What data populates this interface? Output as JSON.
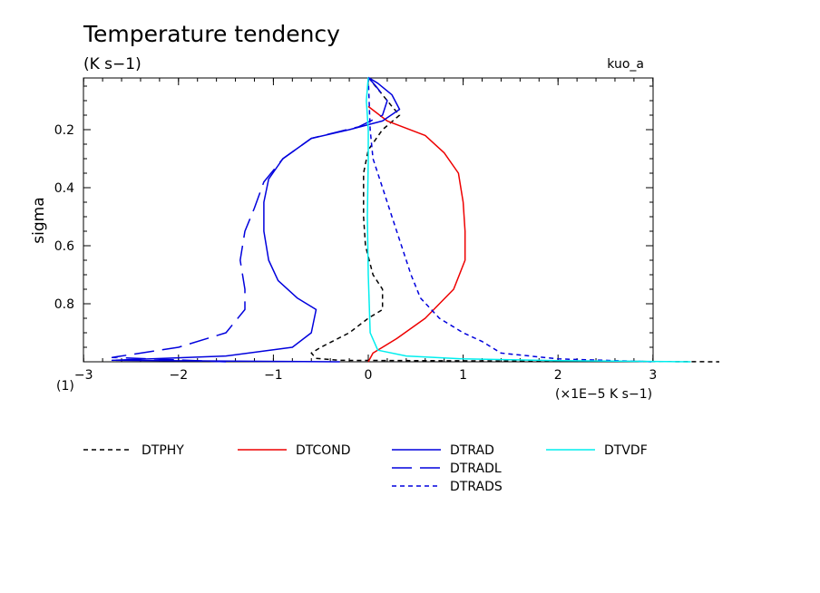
{
  "chart_data": {
    "type": "line",
    "title": "Temperature tendency",
    "units_label": "(K s−1)",
    "case_label": "kuo_a",
    "ylabel": "sigma",
    "x_multiplier_label": "(×1E−5 K s−1)",
    "panel_label": "(1)",
    "xlim": [
      -3,
      3
    ],
    "ylim": [
      1.0,
      0.02
    ],
    "x_ticks": [
      -3,
      -2,
      -1,
      0,
      1,
      2,
      3
    ],
    "x_tick_labels": [
      "−3",
      "−2",
      "−1",
      "0",
      "1",
      "2",
      "3"
    ],
    "y_ticks": [
      0.2,
      0.4,
      0.6,
      0.8
    ],
    "y_tick_labels": [
      "0.2",
      "0.4",
      "0.6",
      "0.8"
    ],
    "series": [
      {
        "name": "DTPHY",
        "color": "#000000",
        "dash": "short",
        "points": [
          [
            0.0,
            0.02
          ],
          [
            0.15,
            0.08
          ],
          [
            0.25,
            0.12
          ],
          [
            0.33,
            0.15
          ],
          [
            0.15,
            0.2
          ],
          [
            0.0,
            0.27
          ],
          [
            -0.05,
            0.35
          ],
          [
            -0.05,
            0.5
          ],
          [
            -0.03,
            0.6
          ],
          [
            0.05,
            0.7
          ],
          [
            0.15,
            0.75
          ],
          [
            0.15,
            0.82
          ],
          [
            0.0,
            0.85
          ],
          [
            -0.2,
            0.9
          ],
          [
            -0.5,
            0.95
          ],
          [
            -0.6,
            0.97
          ],
          [
            -0.55,
            0.988
          ],
          [
            -0.3,
            0.995
          ],
          [
            3.7,
            1.0
          ]
        ]
      },
      {
        "name": "DTCOND",
        "color": "#ee0000",
        "dash": "solid",
        "points": [
          [
            0.0,
            0.12
          ],
          [
            0.2,
            0.17
          ],
          [
            0.6,
            0.22
          ],
          [
            0.8,
            0.28
          ],
          [
            0.95,
            0.35
          ],
          [
            1.0,
            0.45
          ],
          [
            1.02,
            0.55
          ],
          [
            1.02,
            0.65
          ],
          [
            0.9,
            0.75
          ],
          [
            0.6,
            0.85
          ],
          [
            0.3,
            0.92
          ],
          [
            0.05,
            0.97
          ],
          [
            0.0,
            1.0
          ]
        ]
      },
      {
        "name": "DTRAD",
        "color": "#0000dd",
        "dash": "solid",
        "points": [
          [
            0.0,
            0.02
          ],
          [
            0.1,
            0.04
          ],
          [
            0.25,
            0.08
          ],
          [
            0.33,
            0.13
          ],
          [
            0.15,
            0.17
          ],
          [
            -0.2,
            0.2
          ],
          [
            -0.6,
            0.23
          ],
          [
            -0.9,
            0.3
          ],
          [
            -1.05,
            0.37
          ],
          [
            -1.1,
            0.45
          ],
          [
            -1.1,
            0.55
          ],
          [
            -1.05,
            0.65
          ],
          [
            -0.95,
            0.72
          ],
          [
            -0.75,
            0.78
          ],
          [
            -0.55,
            0.82
          ],
          [
            -0.6,
            0.9
          ],
          [
            -0.8,
            0.95
          ],
          [
            -1.5,
            0.98
          ],
          [
            -2.7,
            0.995
          ],
          [
            -0.3,
            1.0
          ]
        ]
      },
      {
        "name": "DTRADL",
        "color": "#0000dd",
        "dash": "long",
        "points": [
          [
            0.0,
            0.02
          ],
          [
            0.08,
            0.05
          ],
          [
            0.2,
            0.1
          ],
          [
            0.15,
            0.15
          ],
          [
            -0.1,
            0.19
          ],
          [
            -0.6,
            0.23
          ],
          [
            -0.9,
            0.3
          ],
          [
            -1.1,
            0.38
          ],
          [
            -1.2,
            0.47
          ],
          [
            -1.3,
            0.55
          ],
          [
            -1.35,
            0.65
          ],
          [
            -1.3,
            0.75
          ],
          [
            -1.3,
            0.82
          ],
          [
            -1.5,
            0.9
          ],
          [
            -2.0,
            0.95
          ],
          [
            -2.7,
            0.985
          ],
          [
            -1.5,
            1.0
          ]
        ]
      },
      {
        "name": "DTRADS",
        "color": "#0000dd",
        "dash": "short",
        "points": [
          [
            0.0,
            0.02
          ],
          [
            0.02,
            0.2
          ],
          [
            0.05,
            0.3
          ],
          [
            0.15,
            0.4
          ],
          [
            0.25,
            0.5
          ],
          [
            0.35,
            0.6
          ],
          [
            0.45,
            0.7
          ],
          [
            0.55,
            0.78
          ],
          [
            0.75,
            0.85
          ],
          [
            1.0,
            0.9
          ],
          [
            1.2,
            0.93
          ],
          [
            1.4,
            0.97
          ],
          [
            2.0,
            0.99
          ],
          [
            3.0,
            1.0
          ]
        ]
      },
      {
        "name": "DTVDF",
        "color": "#00eeee",
        "dash": "solid",
        "points": [
          [
            0.0,
            0.02
          ],
          [
            -0.02,
            0.1
          ],
          [
            0.0,
            0.2
          ],
          [
            0.0,
            0.3
          ],
          [
            -0.01,
            0.5
          ],
          [
            0.0,
            0.7
          ],
          [
            0.02,
            0.9
          ],
          [
            0.1,
            0.96
          ],
          [
            0.4,
            0.98
          ],
          [
            1.0,
            0.99
          ],
          [
            2.0,
            0.996
          ],
          [
            3.4,
            1.0
          ]
        ]
      }
    ],
    "legend": {
      "placement": "bottom",
      "rows": [
        [
          "DTPHY",
          "DTCOND",
          "DTRAD",
          "DTVDF"
        ],
        [
          "",
          "",
          "DTRADL",
          ""
        ],
        [
          "",
          "",
          "DTRADS",
          ""
        ]
      ]
    }
  }
}
